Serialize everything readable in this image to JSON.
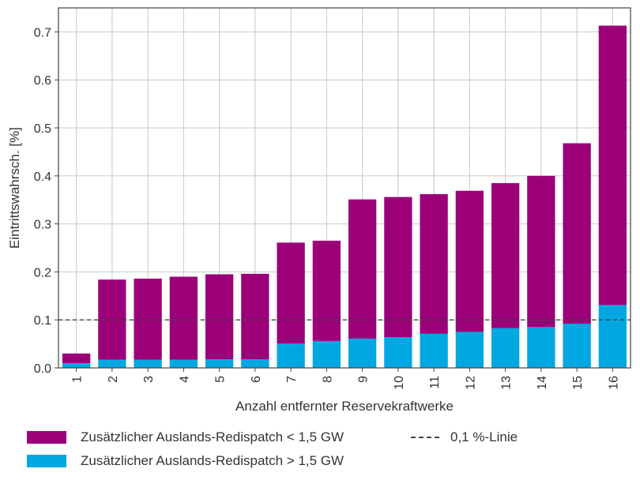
{
  "chart_data": {
    "type": "bar",
    "stacked": true,
    "categories": [
      "1",
      "2",
      "3",
      "4",
      "5",
      "6",
      "7",
      "8",
      "9",
      "10",
      "11",
      "12",
      "13",
      "14",
      "15",
      "16"
    ],
    "series": [
      {
        "name": "Zusätzlicher Auslands-Redispatch > 1,5 GW",
        "color": "#00a7e1",
        "values": [
          0.01,
          0.017,
          0.017,
          0.017,
          0.018,
          0.018,
          0.051,
          0.056,
          0.061,
          0.064,
          0.071,
          0.075,
          0.083,
          0.085,
          0.092,
          0.131
        ]
      },
      {
        "name": "Zusätzlicher Auslands-Redispatch < 1,5 GW",
        "color": "#9b0079",
        "values": [
          0.02,
          0.167,
          0.169,
          0.173,
          0.177,
          0.178,
          0.21,
          0.209,
          0.29,
          0.292,
          0.291,
          0.294,
          0.302,
          0.315,
          0.376,
          0.582
        ]
      }
    ],
    "totals": [
      0.03,
      0.184,
      0.186,
      0.19,
      0.195,
      0.196,
      0.261,
      0.265,
      0.351,
      0.356,
      0.362,
      0.369,
      0.385,
      0.4,
      0.468,
      0.713
    ],
    "reference_line": {
      "value": 0.1,
      "label": "0,1 %-Linie",
      "style": "dashed",
      "color": "#444444"
    },
    "xlabel": "Anzahl entfernter Reservekraftwerke",
    "ylabel": "Eintrittswahrsch. [%]",
    "ylim": [
      0,
      0.75
    ],
    "yticks": [
      0.0,
      0.1,
      0.2,
      0.3,
      0.4,
      0.5,
      0.6,
      0.7
    ],
    "ytick_labels": [
      "0.0",
      "0.1",
      "0.2",
      "0.3",
      "0.4",
      "0.5",
      "0.6",
      "0.7"
    ],
    "grid": true,
    "legend_position": "bottom-left"
  },
  "legend": {
    "items": [
      {
        "label": "Zusätzlicher Auslands-Redispatch < 1,5 GW",
        "color": "#9b0079"
      },
      {
        "label": "Zusätzlicher Auslands-Redispatch > 1,5 GW",
        "color": "#00a7e1"
      }
    ],
    "line_label": "0,1 %-Linie"
  }
}
